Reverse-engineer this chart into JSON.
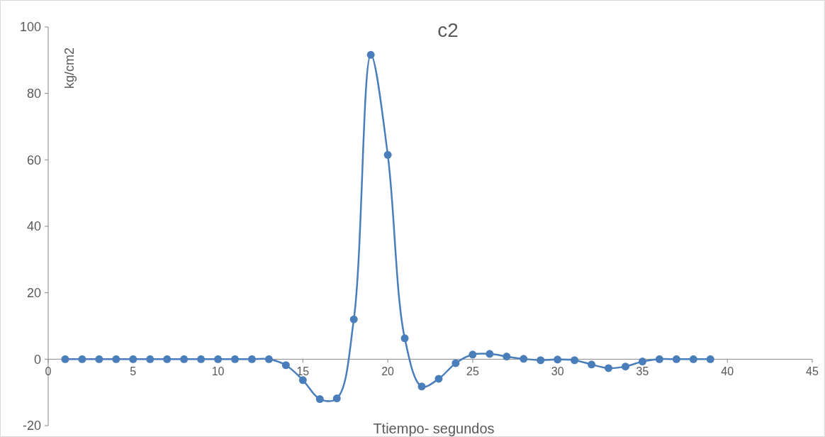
{
  "chart_data": {
    "type": "line",
    "title": "c2",
    "xlabel": "Ttiempo- segundos",
    "ylabel": "kg/cm2",
    "x": [
      1,
      2,
      3,
      4,
      5,
      6,
      7,
      8,
      9,
      10,
      11,
      12,
      13,
      14,
      15,
      16,
      17,
      18,
      19,
      20,
      21,
      22,
      23,
      24,
      25,
      26,
      27,
      28,
      29,
      30,
      31,
      32,
      33,
      34,
      35,
      36,
      37,
      38,
      39
    ],
    "series": [
      {
        "color": "#4a7ebb",
        "values": [
          0,
          0,
          0,
          0,
          0,
          0,
          0,
          0,
          0,
          0,
          0,
          0,
          0,
          -1.8,
          -6.3,
          -12,
          -11.8,
          12,
          91.6,
          61.5,
          6.3,
          -8.2,
          -5.9,
          -1.2,
          1.4,
          1.6,
          0.8,
          0.1,
          -0.3,
          -0.1,
          -0.3,
          -1.6,
          -2.7,
          -2.2,
          -0.7,
          0,
          0,
          0,
          0
        ]
      }
    ],
    "xlim": [
      0,
      45
    ],
    "xticks": [
      0,
      5,
      10,
      15,
      20,
      25,
      30,
      35,
      40,
      45
    ],
    "ylim": [
      -20,
      100
    ],
    "yticks": [
      -20,
      0,
      20,
      40,
      60,
      80,
      100
    ],
    "grid": false,
    "marker": "circle",
    "line_style": "solid"
  }
}
